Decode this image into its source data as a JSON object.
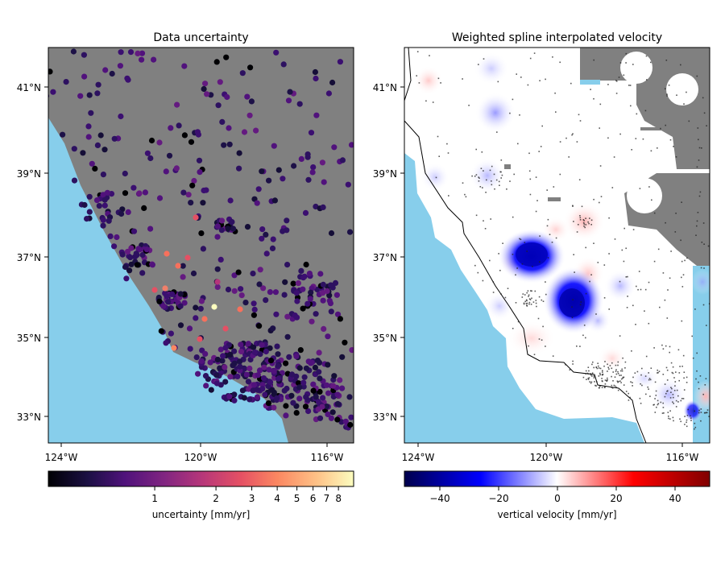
{
  "colors": {
    "ocean": "#87ceeb",
    "land": "#808080",
    "coast_line": "#000000",
    "background": "#ffffff"
  },
  "left_panel": {
    "title": "Data uncertainty",
    "y_ticks": [
      "41°N",
      "39°N",
      "37°N",
      "35°N",
      "33°N"
    ],
    "x_ticks": [
      "124°W",
      "120°W",
      "116°W"
    ],
    "colorbar": {
      "colormap": "magma",
      "scale": "log",
      "ticks": [
        "1",
        "2",
        "3",
        "4",
        "5",
        "6",
        "7",
        "8"
      ],
      "label": "uncertainty [mm/yr]"
    }
  },
  "right_panel": {
    "title": "Weighted spline interpolated velocity",
    "y_ticks": [
      "41°N",
      "39°N",
      "37°N",
      "35°N",
      "33°N"
    ],
    "x_ticks": [
      "124°W",
      "120°W",
      "116°W"
    ],
    "colorbar": {
      "colormap": "seismic",
      "ticks": [
        "−40",
        "−20",
        "0",
        "20",
        "40"
      ],
      "label": "vertical velocity [mm/yr]"
    }
  }
}
